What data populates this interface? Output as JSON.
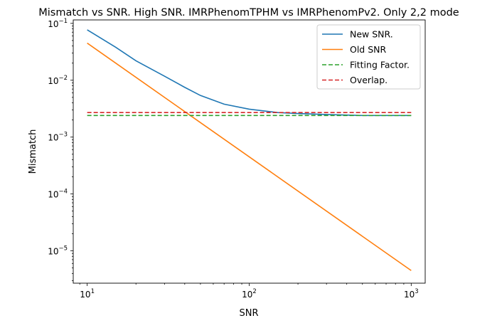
{
  "chart_data": {
    "type": "line",
    "title": "Mismatch vs SNR. High SNR. IMRPhenomTPHM vs IMRPhenomPv2. Only 2,2 mode",
    "xlabel": "SNR",
    "ylabel": "Mismatch",
    "xscale": "log",
    "yscale": "log",
    "xlim": [
      8.2,
      1220
    ],
    "ylim": [
      2.7e-06,
      0.115
    ],
    "grid": false,
    "legend_position": "top-right",
    "x_ticks": [
      {
        "value": 10,
        "base": "10",
        "exp": "1"
      },
      {
        "value": 100,
        "base": "10",
        "exp": "2"
      },
      {
        "value": 1000,
        "base": "10",
        "exp": "3"
      }
    ],
    "y_ticks": [
      {
        "value": 1e-05,
        "base": "10",
        "exp": "−5"
      },
      {
        "value": 0.0001,
        "base": "10",
        "exp": "−4"
      },
      {
        "value": 0.001,
        "base": "10",
        "exp": "−3"
      },
      {
        "value": 0.01,
        "base": "10",
        "exp": "−2"
      },
      {
        "value": 0.1,
        "base": "10",
        "exp": "−1"
      }
    ],
    "series": [
      {
        "name": "New SNR.",
        "color": "#1f77b4",
        "style": "solid",
        "x": [
          10,
          15,
          20,
          30,
          40,
          50,
          70,
          100,
          150,
          200,
          300,
          500,
          700,
          1000
        ],
        "y": [
          0.077,
          0.038,
          0.022,
          0.0118,
          0.0075,
          0.0054,
          0.0038,
          0.0031,
          0.0027,
          0.0026,
          0.0025,
          0.0024,
          0.0024,
          0.0024
        ]
      },
      {
        "name": "Old SNR",
        "color": "#ff7f0e",
        "style": "solid",
        "x": [
          10,
          1000
        ],
        "y": [
          0.045,
          4.5e-06
        ]
      },
      {
        "name": "Fitting Factor.",
        "color": "#2ca02c",
        "style": "dashed",
        "x": [
          10,
          1000
        ],
        "y": [
          0.0024,
          0.0024
        ]
      },
      {
        "name": "Overlap.",
        "color": "#d62728",
        "style": "dashed",
        "x": [
          10,
          1000
        ],
        "y": [
          0.0027,
          0.0027
        ]
      }
    ]
  }
}
